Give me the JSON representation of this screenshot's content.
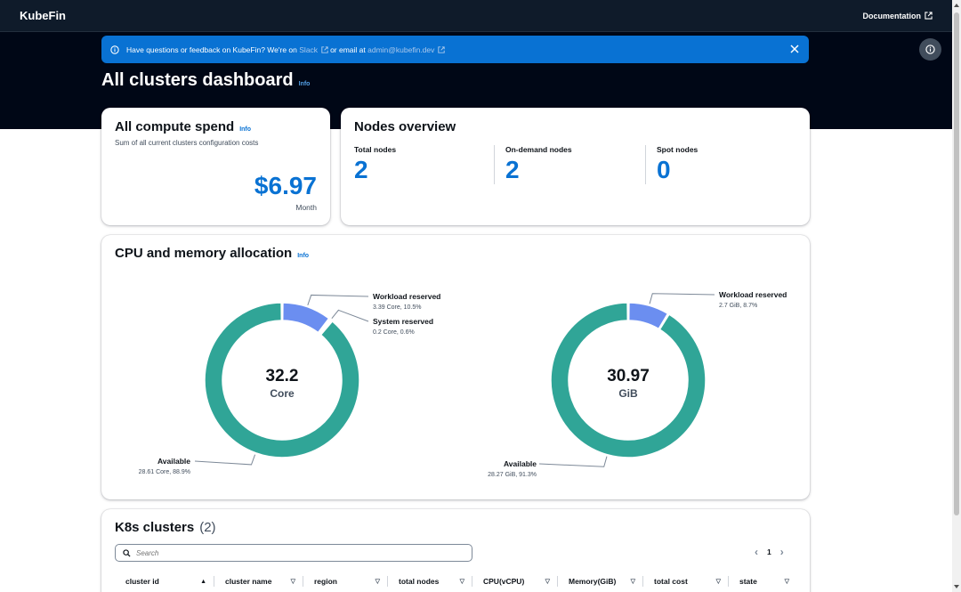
{
  "app": {
    "title": "KubeFin",
    "documentation_label": "Documentation"
  },
  "flash": {
    "text_before": "Have questions or feedback on KubeFin? We're on ",
    "slack_label": "Slack",
    "text_middle": "or email at ",
    "email": "admin@kubefin.dev"
  },
  "page": {
    "title": "All clusters dashboard",
    "info_label": "Info"
  },
  "compute_spend": {
    "title": "All compute spend",
    "info_label": "Info",
    "subtitle": "Sum of all current clusters configuration costs",
    "amount": "$6.97",
    "unit": "Month"
  },
  "nodes_overview": {
    "title": "Nodes overview",
    "items": [
      {
        "label": "Total nodes",
        "value": "2"
      },
      {
        "label": "On-demand nodes",
        "value": "2"
      },
      {
        "label": "Spot nodes",
        "value": "0"
      }
    ]
  },
  "allocation": {
    "title": "CPU and memory allocation",
    "info_label": "Info",
    "colors": {
      "available": "#30a597",
      "workload": "#6b8ef0",
      "system": "#d33b5e"
    },
    "cpu": {
      "center_value": "32.2",
      "center_unit": "Core",
      "segments": [
        {
          "name": "Workload reserved",
          "detail": "3.39 Core, 10.5%",
          "percent": 10.5
        },
        {
          "name": "System reserved",
          "detail": "0.2 Core, 0.6%",
          "percent": 0.6
        },
        {
          "name": "Available",
          "detail": "28.61 Core, 88.9%",
          "percent": 88.9
        }
      ]
    },
    "memory": {
      "center_value": "30.97",
      "center_unit": "GiB",
      "segments": [
        {
          "name": "Workload reserved",
          "detail": "2.7 GiB, 8.7%",
          "percent": 8.7
        },
        {
          "name": "Available",
          "detail": "28.27 GiB, 91.3%",
          "percent": 91.3
        }
      ]
    }
  },
  "clusters": {
    "title": "K8s clusters",
    "count": "(2)",
    "search_placeholder": "Search",
    "current_page": "1",
    "columns": [
      "cluster id",
      "cluster name",
      "region",
      "total nodes",
      "CPU(vCPU)",
      "Memory(GiB)",
      "total cost",
      "state"
    ]
  }
}
